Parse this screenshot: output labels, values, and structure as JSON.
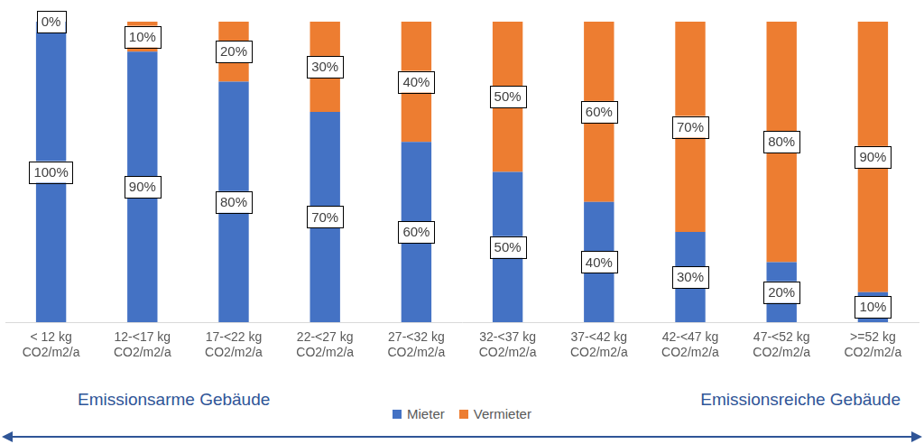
{
  "chart_data": {
    "type": "bar",
    "categories": [
      "< 12 kg\nCO2/m2/a",
      "12-<17 kg\nCO2/m2/a",
      "17-<22 kg\nCO2/m2/a",
      "22-<27 kg\nCO2/m2/a",
      "27-<32 kg\nCO2/m2/a",
      "32-<37 kg\nCO2/m2/a",
      "37-<42 kg\nCO2/m2/a",
      "42-<47 kg\nCO2/m2/a",
      "47-<52 kg\nCO2/m2/a",
      ">=52 kg\nCO2/m2/a"
    ],
    "series": [
      {
        "name": "Mieter",
        "color": "#4472C4",
        "values": [
          100,
          90,
          80,
          70,
          60,
          50,
          40,
          30,
          20,
          10
        ],
        "value_labels": [
          "100%",
          "90%",
          "80%",
          "70%",
          "60%",
          "50%",
          "40%",
          "30%",
          "20%",
          "10%"
        ]
      },
      {
        "name": "Vermieter",
        "color": "#ED7D31",
        "values": [
          0,
          10,
          20,
          30,
          40,
          50,
          60,
          70,
          80,
          90
        ],
        "value_labels": [
          "0%",
          "10%",
          "20%",
          "30%",
          "40%",
          "50%",
          "60%",
          "70%",
          "80%",
          "90%"
        ]
      }
    ],
    "annotations": [
      "Emissionsarme Gebäude",
      "Emissionsreiche Gebäude"
    ],
    "ylim": [
      0,
      100
    ],
    "stacked": true,
    "grid": false,
    "legend": "bottom",
    "data_labels": true,
    "tick_labels": "x"
  }
}
